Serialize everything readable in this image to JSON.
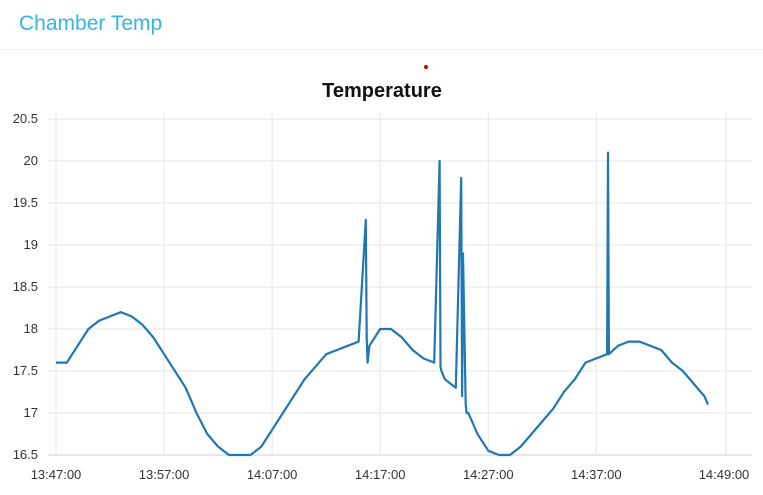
{
  "panel": {
    "title": "Chamber Temp"
  },
  "colors": {
    "title": "#33b5e5",
    "series": "#1f77b4",
    "grid": "#e6e6e6",
    "indicator": "#cc0000"
  },
  "chart_data": {
    "type": "line",
    "title": "Temperature",
    "xlabel": "",
    "ylabel": "",
    "grid": true,
    "legend": "none",
    "ylim": [
      16.5,
      20.5
    ],
    "xlim": [
      "13:47:00",
      "14:49:00"
    ],
    "x_ticks": [
      "13:47:00",
      "13:57:00",
      "14:07:00",
      "14:17:00",
      "14:27:00",
      "14:37:00",
      "14:49:00"
    ],
    "y_ticks": [
      "16.5",
      "17",
      "17.5",
      "18",
      "18.5",
      "19",
      "19.5",
      "20",
      "20.5"
    ],
    "series": [
      {
        "x": [
          "13:47:00",
          "13:48:00",
          "13:49:00",
          "13:50:00",
          "13:51:00",
          "13:52:00",
          "13:53:00",
          "13:54:00",
          "13:55:00",
          "13:56:00",
          "13:57:00",
          "13:58:00",
          "13:59:00",
          "14:00:00",
          "14:01:00",
          "14:02:00",
          "14:03:00",
          "14:04:00",
          "14:05:00",
          "14:06:00",
          "14:07:00",
          "14:08:00",
          "14:09:00",
          "14:10:00",
          "14:11:00",
          "14:12:00",
          "14:13:00",
          "14:14:00",
          "14:15:00",
          "14:15:40",
          "14:15:45",
          "14:15:50",
          "14:16:00",
          "14:17:00",
          "14:18:00",
          "14:19:00",
          "14:20:00",
          "14:21:00",
          "14:22:00",
          "14:22:30",
          "14:22:35",
          "14:22:40",
          "14:23:00",
          "14:24:00",
          "14:24:30",
          "14:24:35",
          "14:24:40",
          "14:24:55",
          "14:25:00",
          "14:25:05",
          "14:25:10",
          "14:26:00",
          "14:27:00",
          "14:28:00",
          "14:29:00",
          "14:30:00",
          "14:31:00",
          "14:32:00",
          "14:33:00",
          "14:34:00",
          "14:35:00",
          "14:36:00",
          "14:37:00",
          "14:38:00",
          "14:38:05",
          "14:38:10",
          "14:39:00",
          "14:40:00",
          "14:41:00",
          "14:42:00",
          "14:43:00",
          "14:44:00",
          "14:45:00",
          "14:46:00",
          "14:47:00",
          "14:47:20"
        ],
        "y": [
          17.6,
          17.6,
          17.8,
          18.0,
          18.1,
          18.15,
          18.2,
          18.15,
          18.05,
          17.9,
          17.7,
          17.5,
          17.3,
          17.0,
          16.75,
          16.6,
          16.5,
          16.5,
          16.5,
          16.6,
          16.8,
          17.0,
          17.2,
          17.4,
          17.55,
          17.7,
          17.75,
          17.8,
          17.85,
          19.3,
          17.9,
          17.6,
          17.8,
          18.0,
          18.0,
          17.9,
          17.75,
          17.65,
          17.6,
          20.0,
          17.55,
          17.5,
          17.4,
          17.3,
          19.8,
          17.2,
          18.9,
          17.1,
          17.0,
          17.0,
          17.0,
          16.75,
          16.55,
          16.5,
          16.5,
          16.6,
          16.75,
          16.9,
          17.05,
          17.25,
          17.4,
          17.6,
          17.65,
          17.7,
          20.1,
          17.7,
          17.8,
          17.85,
          17.85,
          17.8,
          17.75,
          17.6,
          17.5,
          17.35,
          17.2,
          17.1
        ]
      }
    ]
  }
}
